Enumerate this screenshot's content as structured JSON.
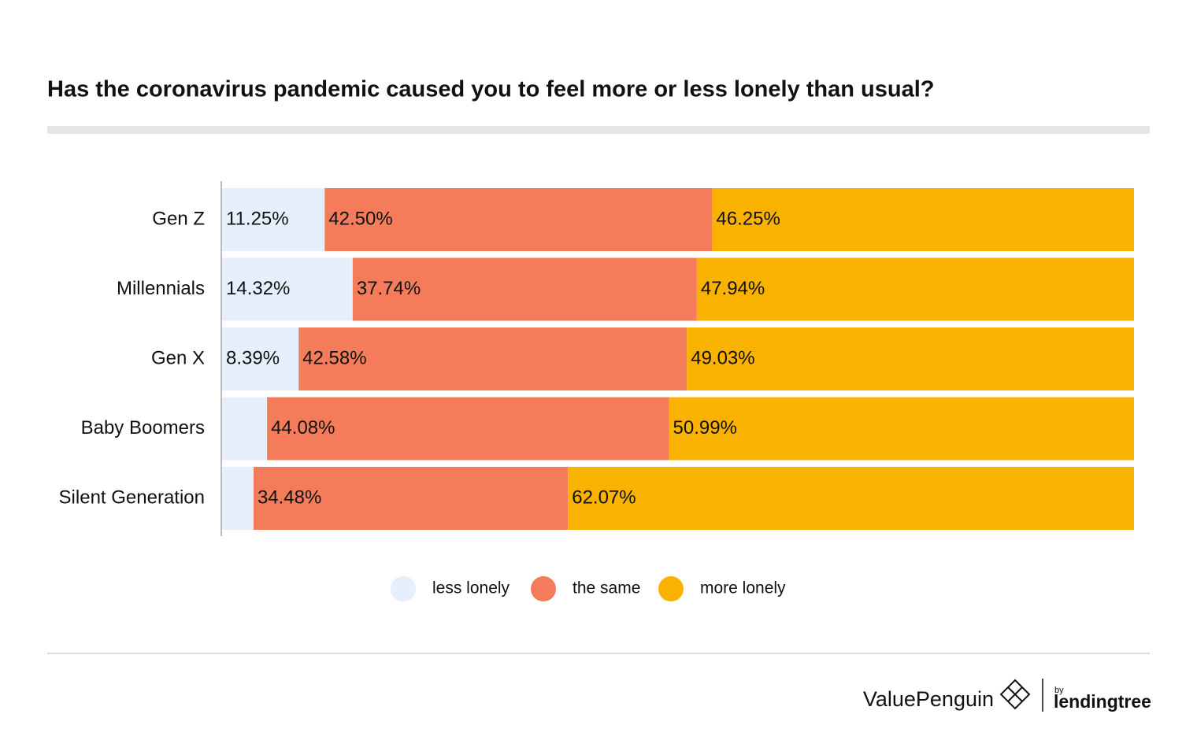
{
  "chart_data": {
    "type": "stacked-bar-horizontal",
    "title": "Has the coronavirus pandemic caused you to feel more or less lonely than usual?",
    "categories": [
      "Gen Z",
      "Millennials",
      "Gen X",
      "Baby Boomers",
      "Silent Generation"
    ],
    "series": [
      {
        "name": "less lonely",
        "color": "#e6f0fc",
        "values": [
          11.25,
          14.32,
          8.39,
          4.93,
          3.45
        ],
        "value_labels": [
          "11.25%",
          "14.32%",
          "8.39%",
          null,
          null
        ]
      },
      {
        "name": "the same",
        "color": "#f47c5a",
        "values": [
          42.5,
          37.74,
          42.58,
          44.08,
          34.48
        ],
        "value_labels": [
          "42.50%",
          "37.74%",
          "42.58%",
          "44.08%",
          "34.48%"
        ]
      },
      {
        "name": "more lonely",
        "color": "#f9b200",
        "values": [
          46.25,
          47.94,
          49.03,
          50.99,
          62.07
        ],
        "value_labels": [
          "46.25%",
          "47.94%",
          "49.03%",
          "50.99%",
          "62.07%"
        ]
      }
    ],
    "xlim": [
      0,
      100
    ],
    "legend": "bottom"
  },
  "footer": {
    "brand": "ValuePenguin",
    "by": "by",
    "partner": "lendingtree"
  }
}
